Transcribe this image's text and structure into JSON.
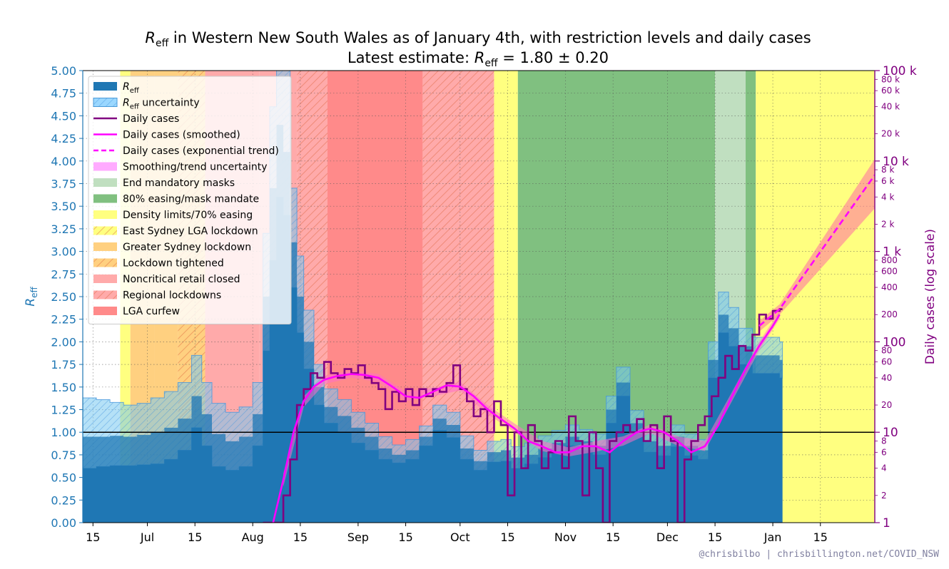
{
  "chart_data": {
    "type": "area",
    "title": "R_eff in Western New South Wales as of January 4th, with restriction levels and daily cases",
    "title_parts": {
      "r": "R",
      "sub": "eff",
      "rest": " in Western New South Wales as of January 4th, with restriction levels and daily cases"
    },
    "subtitle_parts": {
      "prefix": "Latest estimate: ",
      "r": "R",
      "sub": "eff",
      "rest": " = 1.80 ± 0.20"
    },
    "ylabel_left": {
      "r": "R",
      "sub": "eff"
    },
    "ylabel_right": "Daily cases (log scale)",
    "credit": "@chrisbilbo | chrisbillington.net/COVID_NSW",
    "x_range": [
      "2021-06-12",
      "2022-01-31"
    ],
    "x_ticks": [
      {
        "date": "2021-06-15",
        "label": "15"
      },
      {
        "date": "2021-07-01",
        "label": "Jul"
      },
      {
        "date": "2021-07-15",
        "label": "15"
      },
      {
        "date": "2021-08-01",
        "label": "Aug"
      },
      {
        "date": "2021-08-15",
        "label": "15"
      },
      {
        "date": "2021-09-01",
        "label": "Sep"
      },
      {
        "date": "2021-09-15",
        "label": "15"
      },
      {
        "date": "2021-10-01",
        "label": "Oct"
      },
      {
        "date": "2021-10-15",
        "label": "15"
      },
      {
        "date": "2021-11-01",
        "label": "Nov"
      },
      {
        "date": "2021-11-15",
        "label": "15"
      },
      {
        "date": "2021-12-01",
        "label": "Dec"
      },
      {
        "date": "2021-12-15",
        "label": "15"
      },
      {
        "date": "2022-01-01",
        "label": "Jan"
      },
      {
        "date": "2022-01-15",
        "label": "15"
      }
    ],
    "y_left": {
      "min": 0,
      "max": 5,
      "ticks": [
        "0.00",
        "0.25",
        "0.50",
        "0.75",
        "1.00",
        "1.25",
        "1.50",
        "1.75",
        "2.00",
        "2.25",
        "2.50",
        "2.75",
        "3.00",
        "3.25",
        "3.50",
        "3.75",
        "4.00",
        "4.25",
        "4.50",
        "4.75",
        "5.00"
      ]
    },
    "y_right": {
      "min": 1,
      "max": 100000,
      "scale": "log",
      "major": [
        {
          "v": 1,
          "label": "1"
        },
        {
          "v": 10,
          "label": "10"
        },
        {
          "v": 100,
          "label": "100"
        },
        {
          "v": 1000,
          "label": "1 k"
        },
        {
          "v": 10000,
          "label": "10 k"
        },
        {
          "v": 100000,
          "label": "100 k"
        }
      ],
      "minor": [
        {
          "v": 2,
          "label": "2"
        },
        {
          "v": 4,
          "label": "4"
        },
        {
          "v": 6,
          "label": "6"
        },
        {
          "v": 8,
          "label": "8"
        },
        {
          "v": 20,
          "label": "20"
        },
        {
          "v": 40,
          "label": "40"
        },
        {
          "v": 60,
          "label": "60"
        },
        {
          "v": 80,
          "label": "80"
        },
        {
          "v": 200,
          "label": "200"
        },
        {
          "v": 400,
          "label": "400"
        },
        {
          "v": 600,
          "label": "600"
        },
        {
          "v": 800,
          "label": "800"
        },
        {
          "v": 2000,
          "label": "2 k"
        },
        {
          "v": 4000,
          "label": "4 k"
        },
        {
          "v": 6000,
          "label": "6 k"
        },
        {
          "v": 8000,
          "label": "8 k"
        },
        {
          "v": 20000,
          "label": "20 k"
        },
        {
          "v": 40000,
          "label": "40 k"
        },
        {
          "v": 60000,
          "label": "60 k"
        },
        {
          "v": 80000,
          "label": "80 k"
        }
      ]
    },
    "grid": true,
    "legend_position": "top-left",
    "restriction_periods": [
      {
        "start": "2021-06-12",
        "end": "2021-06-23",
        "name": "none",
        "color": "#ffffff",
        "hatch": false
      },
      {
        "start": "2021-06-23",
        "end": "2021-06-26",
        "name": "Density limits/70% easing",
        "color": "#ffff80",
        "hatch": false
      },
      {
        "start": "2021-06-26",
        "end": "2021-07-03",
        "name": "Greater Sydney lockdown",
        "color": "#ffd080",
        "hatch": false
      },
      {
        "start": "2021-07-03",
        "end": "2021-07-10",
        "name": "Greater Sydney lockdown",
        "color": "#ffd080",
        "hatch": false
      },
      {
        "start": "2021-07-10",
        "end": "2021-07-18",
        "name": "Lockdown tightened",
        "color": "#ffd080",
        "hatch": true
      },
      {
        "start": "2021-07-18",
        "end": "2021-08-03",
        "name": "Noncritical retail closed",
        "color": "#ffaaaa",
        "hatch": false
      },
      {
        "start": "2021-08-03",
        "end": "2021-08-14",
        "name": "Noncritical retail closed",
        "color": "#ffaaaa",
        "hatch": false
      },
      {
        "start": "2021-08-14",
        "end": "2021-08-23",
        "name": "Regional lockdowns",
        "color": "#ffaaaa",
        "hatch": true
      },
      {
        "start": "2021-08-23",
        "end": "2021-09-20",
        "name": "LGA curfew",
        "color": "#ff8a8a",
        "hatch": false
      },
      {
        "start": "2021-09-20",
        "end": "2021-10-11",
        "name": "Regional lockdowns",
        "color": "#ffaaaa",
        "hatch": true
      },
      {
        "start": "2021-10-11",
        "end": "2021-10-18",
        "name": "Density limits/70% easing",
        "color": "#ffff80",
        "hatch": false
      },
      {
        "start": "2021-10-18",
        "end": "2021-12-15",
        "name": "80% easing/mask mandate",
        "color": "#80c080",
        "hatch": false
      },
      {
        "start": "2021-12-15",
        "end": "2021-12-24",
        "name": "End mandatory masks",
        "color": "#c0dfc0",
        "hatch": false
      },
      {
        "start": "2021-12-24",
        "end": "2021-12-27",
        "name": "80% easing/mask mandate",
        "color": "#80c080",
        "hatch": false
      },
      {
        "start": "2021-12-27",
        "end": "2022-01-31",
        "name": "Density limits/70% easing",
        "color": "#ffff80",
        "hatch": false
      }
    ],
    "reff": {
      "name": "R_eff",
      "dates": [
        "2021-06-12",
        "2021-06-16",
        "2021-06-20",
        "2021-06-24",
        "2021-06-28",
        "2021-07-02",
        "2021-07-06",
        "2021-07-10",
        "2021-07-14",
        "2021-07-17",
        "2021-07-20",
        "2021-07-24",
        "2021-07-28",
        "2021-08-01",
        "2021-08-04",
        "2021-08-06",
        "2021-08-08",
        "2021-08-10",
        "2021-08-12",
        "2021-08-14",
        "2021-08-16",
        "2021-08-19",
        "2021-08-22",
        "2021-08-26",
        "2021-08-30",
        "2021-09-03",
        "2021-09-07",
        "2021-09-11",
        "2021-09-15",
        "2021-09-19",
        "2021-09-23",
        "2021-09-27",
        "2021-10-01",
        "2021-10-05",
        "2021-10-09",
        "2021-10-13",
        "2021-10-16",
        "2021-10-20",
        "2021-10-24",
        "2021-10-28",
        "2021-11-01",
        "2021-11-05",
        "2021-11-09",
        "2021-11-13",
        "2021-11-16",
        "2021-11-20",
        "2021-11-24",
        "2021-11-28",
        "2021-12-02",
        "2021-12-06",
        "2021-12-10",
        "2021-12-13",
        "2021-12-16",
        "2021-12-19",
        "2021-12-22",
        "2021-12-26",
        "2021-12-30",
        "2022-01-03"
      ],
      "values": [
        0.95,
        0.95,
        0.96,
        0.95,
        0.97,
        1.0,
        1.05,
        1.15,
        1.4,
        1.2,
        0.98,
        0.9,
        0.95,
        1.2,
        2.5,
        3.7,
        4.4,
        4.1,
        3.1,
        2.5,
        2.0,
        1.5,
        1.28,
        1.18,
        1.05,
        0.95,
        0.82,
        0.75,
        0.8,
        0.95,
        1.15,
        1.08,
        0.82,
        0.68,
        0.78,
        0.8,
        0.72,
        0.75,
        0.82,
        0.88,
        0.95,
        0.9,
        0.85,
        1.25,
        1.55,
        1.1,
        0.9,
        0.85,
        0.95,
        0.85,
        0.8,
        1.8,
        2.3,
        2.15,
        1.95,
        1.85,
        1.85,
        1.8
      ],
      "lower": [
        0.6,
        0.62,
        0.63,
        0.63,
        0.64,
        0.65,
        0.7,
        0.8,
        1.05,
        0.85,
        0.62,
        0.58,
        0.62,
        0.85,
        1.9,
        2.9,
        3.6,
        3.4,
        2.6,
        2.1,
        1.7,
        1.3,
        1.1,
        1.0,
        0.88,
        0.8,
        0.7,
        0.66,
        0.7,
        0.85,
        1.02,
        0.94,
        0.7,
        0.58,
        0.67,
        0.68,
        0.6,
        0.65,
        0.72,
        0.78,
        0.85,
        0.8,
        0.75,
        1.1,
        1.4,
        0.98,
        0.78,
        0.74,
        0.84,
        0.74,
        0.7,
        1.6,
        2.1,
        1.95,
        1.75,
        1.65,
        1.65,
        1.6
      ],
      "upper": [
        1.38,
        1.36,
        1.33,
        1.3,
        1.32,
        1.38,
        1.45,
        1.55,
        1.85,
        1.55,
        1.32,
        1.22,
        1.28,
        1.55,
        3.2,
        4.6,
        5.0,
        5.0,
        3.7,
        2.95,
        2.35,
        1.75,
        1.48,
        1.36,
        1.22,
        1.1,
        0.95,
        0.86,
        0.92,
        1.07,
        1.3,
        1.22,
        0.96,
        0.8,
        0.9,
        0.92,
        0.84,
        0.88,
        0.96,
        1.02,
        1.08,
        1.03,
        0.98,
        1.4,
        1.72,
        1.24,
        1.03,
        0.98,
        1.08,
        0.98,
        0.92,
        2.0,
        2.55,
        2.38,
        2.15,
        2.05,
        2.05,
        2.0
      ]
    },
    "daily_cases": {
      "name": "Daily cases",
      "dates": [
        "2021-08-04",
        "2021-08-06",
        "2021-08-08",
        "2021-08-10",
        "2021-08-12",
        "2021-08-14",
        "2021-08-16",
        "2021-08-18",
        "2021-08-20",
        "2021-08-22",
        "2021-08-24",
        "2021-08-26",
        "2021-08-28",
        "2021-08-30",
        "2021-09-01",
        "2021-09-03",
        "2021-09-05",
        "2021-09-07",
        "2021-09-09",
        "2021-09-11",
        "2021-09-13",
        "2021-09-15",
        "2021-09-17",
        "2021-09-19",
        "2021-09-21",
        "2021-09-23",
        "2021-09-25",
        "2021-09-27",
        "2021-09-29",
        "2021-10-01",
        "2021-10-03",
        "2021-10-05",
        "2021-10-07",
        "2021-10-09",
        "2021-10-11",
        "2021-10-13",
        "2021-10-15",
        "2021-10-17",
        "2021-10-19",
        "2021-10-21",
        "2021-10-23",
        "2021-10-25",
        "2021-10-27",
        "2021-10-29",
        "2021-10-31",
        "2021-11-02",
        "2021-11-04",
        "2021-11-06",
        "2021-11-08",
        "2021-11-10",
        "2021-11-12",
        "2021-11-14",
        "2021-11-16",
        "2021-11-18",
        "2021-11-20",
        "2021-11-22",
        "2021-11-24",
        "2021-11-26",
        "2021-11-28",
        "2021-11-30",
        "2021-12-02",
        "2021-12-04",
        "2021-12-06",
        "2021-12-08",
        "2021-12-10",
        "2021-12-12",
        "2021-12-14",
        "2021-12-16",
        "2021-12-18",
        "2021-12-20",
        "2021-12-22",
        "2021-12-24",
        "2021-12-26",
        "2021-12-28",
        "2021-12-30",
        "2022-01-01",
        "2022-01-03"
      ],
      "values": [
        1,
        1,
        1,
        2,
        5,
        20,
        30,
        45,
        40,
        60,
        45,
        40,
        50,
        45,
        55,
        40,
        35,
        30,
        18,
        28,
        22,
        30,
        20,
        30,
        25,
        30,
        28,
        35,
        55,
        30,
        22,
        15,
        18,
        10,
        22,
        12,
        2,
        10,
        4,
        12,
        8,
        4,
        6,
        8,
        4,
        15,
        8,
        2,
        10,
        4,
        1,
        8,
        10,
        12,
        10,
        14,
        8,
        12,
        4,
        15,
        8,
        1,
        5,
        8,
        12,
        15,
        25,
        40,
        70,
        50,
        90,
        80,
        120,
        200,
        180,
        220,
        230
      ]
    },
    "daily_cases_smoothed": {
      "name": "Daily cases (smoothed)",
      "dates": [
        "2021-08-07",
        "2021-08-10",
        "2021-08-13",
        "2021-08-16",
        "2021-08-19",
        "2021-08-22",
        "2021-08-26",
        "2021-08-30",
        "2021-09-03",
        "2021-09-07",
        "2021-09-11",
        "2021-09-15",
        "2021-09-19",
        "2021-09-23",
        "2021-09-27",
        "2021-10-01",
        "2021-10-05",
        "2021-10-09",
        "2021-10-13",
        "2021-10-17",
        "2021-10-21",
        "2021-10-25",
        "2021-10-29",
        "2021-11-02",
        "2021-11-06",
        "2021-11-10",
        "2021-11-14",
        "2021-11-18",
        "2021-11-22",
        "2021-11-26",
        "2021-11-30",
        "2021-12-04",
        "2021-12-08",
        "2021-12-12",
        "2021-12-16",
        "2021-12-20",
        "2021-12-24",
        "2021-12-28",
        "2022-01-01",
        "2022-01-03"
      ],
      "values": [
        1,
        3,
        10,
        22,
        32,
        38,
        42,
        44,
        43,
        40,
        32,
        25,
        24,
        28,
        33,
        32,
        25,
        18,
        14,
        11,
        8,
        7,
        6,
        6,
        7,
        7,
        6,
        8,
        10,
        11,
        10,
        8,
        6,
        7,
        12,
        25,
        50,
        90,
        150,
        200
      ]
    },
    "smoothed_band": {
      "name": "Smoothing/trend uncertainty",
      "dates": [
        "2021-08-10",
        "2021-08-16",
        "2021-08-22",
        "2021-08-30",
        "2021-09-07",
        "2021-09-15",
        "2021-09-23",
        "2021-10-01",
        "2021-10-09",
        "2021-10-17",
        "2021-10-25",
        "2021-11-02",
        "2021-11-10",
        "2021-11-18",
        "2021-11-26",
        "2021-12-04",
        "2021-12-12",
        "2021-12-20",
        "2021-12-28",
        "2022-01-03"
      ],
      "lower": [
        2.5,
        19,
        34,
        40,
        36,
        22,
        25,
        29,
        16,
        10,
        6.2,
        5.4,
        6.1,
        7.1,
        9.8,
        7.1,
        6.2,
        22,
        80,
        180
      ],
      "upper": [
        3.5,
        25,
        42,
        48,
        44,
        28,
        31,
        36,
        20,
        12.5,
        8,
        6.8,
        8,
        9,
        12.2,
        9,
        8,
        28,
        100,
        220
      ]
    },
    "exponential_trend": {
      "name": "Daily cases (exponential trend)",
      "dates": [
        "2021-12-28",
        "2022-01-03",
        "2022-01-31"
      ],
      "values": [
        150,
        230,
        7000
      ],
      "lower": [
        130,
        200,
        3000
      ],
      "upper": [
        170,
        260,
        10500
      ]
    },
    "legend": [
      {
        "kind": "reff",
        "text": {
          "r": "R",
          "sub": "eff",
          "rest": ""
        },
        "color": "#1f77b4"
      },
      {
        "kind": "reff_unc",
        "text": {
          "r": "R",
          "sub": "eff",
          "rest": " uncertainty"
        },
        "color": "#9ad7ff"
      },
      {
        "kind": "line",
        "text": "Daily cases",
        "color": "#800080"
      },
      {
        "kind": "line",
        "text": "Daily cases (smoothed)",
        "color": "#ff00ff"
      },
      {
        "kind": "dashed",
        "text": "Daily cases (exponential trend)",
        "color": "#ff00ff"
      },
      {
        "kind": "patch",
        "text": "Smoothing/trend uncertainty",
        "color": "#ffaaff"
      },
      {
        "kind": "patch",
        "text": "End mandatory masks",
        "color": "#c0dfc0"
      },
      {
        "kind": "patch",
        "text": "80% easing/mask mandate",
        "color": "#80c080"
      },
      {
        "kind": "patch",
        "text": "Density limits/70% easing",
        "color": "#ffff80"
      },
      {
        "kind": "hatch",
        "text": "East Sydney LGA lockdown",
        "color": "#ffff80"
      },
      {
        "kind": "patch",
        "text": "Greater Sydney lockdown",
        "color": "#ffd080"
      },
      {
        "kind": "hatch",
        "text": "Lockdown tightened",
        "color": "#ffd080"
      },
      {
        "kind": "patch",
        "text": "Noncritical retail closed",
        "color": "#ffaaaa"
      },
      {
        "kind": "hatch",
        "text": "Regional lockdowns",
        "color": "#ffaaaa"
      },
      {
        "kind": "patch",
        "text": "LGA curfew",
        "color": "#ff8a8a"
      }
    ]
  }
}
